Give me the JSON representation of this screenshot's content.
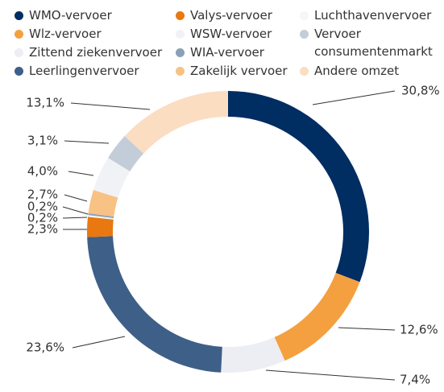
{
  "chart_data": {
    "type": "donut",
    "series": [
      {
        "name": "WMO-vervoer",
        "color": "#002d62",
        "values": [
          30.8
        ],
        "value_labels": [
          "30,8%"
        ]
      },
      {
        "name": "Wlz-vervoer",
        "color": "#f4a040",
        "values": [
          12.6
        ],
        "value_labels": [
          "12,6%"
        ]
      },
      {
        "name": "Zittend ziekenvervoer",
        "color": "#eceef4",
        "values": [
          7.4
        ],
        "value_labels": [
          "7,4%"
        ]
      },
      {
        "name": "Leerlingenvervoer",
        "color": "#3e5f87",
        "values": [
          23.6
        ],
        "value_labels": [
          "23,6%"
        ]
      },
      {
        "name": "Valys-vervoer",
        "color": "#e8780f",
        "values": [
          2.3
        ],
        "value_labels": [
          "2,3%"
        ]
      },
      {
        "name": "Luchthavenvervoer",
        "color": "#f6f6f6",
        "values": [
          0.2
        ],
        "value_labels": [
          "0,2%"
        ]
      },
      {
        "name": "WIA-vervoer",
        "color": "#8aa0b8",
        "values": [
          0.2
        ],
        "value_labels": [
          "0,2%"
        ]
      },
      {
        "name": "Zakelijk vervoer",
        "color": "#f7c283",
        "values": [
          2.7
        ],
        "value_labels": [
          "2,7%"
        ]
      },
      {
        "name": "WSW-vervoer",
        "color": "#f1f2f6",
        "values": [
          4.0
        ],
        "value_labels": [
          "4,0%"
        ]
      },
      {
        "name": "Vervoer consumentenmarkt",
        "color": "#c2cdd9",
        "values": [
          3.1
        ],
        "value_labels": [
          "3,1%"
        ]
      },
      {
        "name": "Andere omzet",
        "color": "#fbddc2",
        "values": [
          13.1
        ],
        "value_labels": [
          "13,1%"
        ]
      }
    ]
  }
}
